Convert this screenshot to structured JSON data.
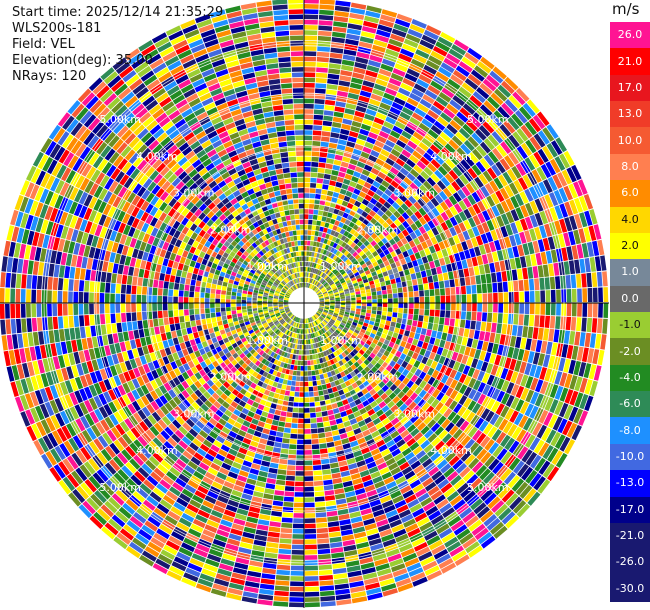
{
  "header": {
    "start_time": "Start time: 2025/12/14 21:35:29",
    "instrument": "WLS200s-181",
    "field": "Field: VEL",
    "elevation": "Elevation(deg): 35.00",
    "nrays": "NRays: 120"
  },
  "colorbar": {
    "unit": "m/s",
    "labels": [
      "26.0",
      "21.0",
      "17.0",
      "13.0",
      "10.0",
      "8.0",
      "6.0",
      "4.0",
      "2.0",
      "1.0",
      "0.0",
      "-1.0",
      "-2.0",
      "-4.0",
      "-6.0",
      "-8.0",
      "-10.0",
      "-13.0",
      "-17.0",
      "-21.0",
      "-26.0",
      "-30.0"
    ],
    "colors": [
      "#ff1493",
      "#ff0000",
      "#e8161e",
      "#f03c28",
      "#f55a32",
      "#ff7f50",
      "#ff8c00",
      "#ffd700",
      "#ffff00",
      "#778899",
      "#696969",
      "#9acd32",
      "#6b8e23",
      "#228b22",
      "#2e8b57",
      "#1e90ff",
      "#4169e1",
      "#0000ff",
      "#00008b",
      "#191970",
      "#191970",
      "#191970"
    ]
  },
  "chart_data": {
    "type": "heatmap",
    "field": "VEL",
    "unit": "m/s",
    "elevation_deg": 35.0,
    "n_rays": 120,
    "range_rings": [
      "1.00km",
      "2.00km",
      "3.00km",
      "4.00km",
      "5.00km"
    ],
    "colorscale": [
      {
        "value": 26.0,
        "color": "#ff1493"
      },
      {
        "value": 21.0,
        "color": "#ff0000"
      },
      {
        "value": 17.0,
        "color": "#e8161e"
      },
      {
        "value": 13.0,
        "color": "#f03c28"
      },
      {
        "value": 10.0,
        "color": "#f55a32"
      },
      {
        "value": 8.0,
        "color": "#ff7f50"
      },
      {
        "value": 6.0,
        "color": "#ff8c00"
      },
      {
        "value": 4.0,
        "color": "#ffd700"
      },
      {
        "value": 2.0,
        "color": "#ffff00"
      },
      {
        "value": 1.0,
        "color": "#778899"
      },
      {
        "value": 0.0,
        "color": "#696969"
      },
      {
        "value": -1.0,
        "color": "#9acd32"
      },
      {
        "value": -2.0,
        "color": "#6b8e23"
      },
      {
        "value": -4.0,
        "color": "#228b22"
      },
      {
        "value": -6.0,
        "color": "#2e8b57"
      },
      {
        "value": -8.0,
        "color": "#1e90ff"
      },
      {
        "value": -10.0,
        "color": "#4169e1"
      },
      {
        "value": -13.0,
        "color": "#0000ff"
      },
      {
        "value": -17.0,
        "color": "#00008b"
      },
      {
        "value": -21.0,
        "color": "#191970"
      },
      {
        "value": -26.0,
        "color": "#191970"
      },
      {
        "value": -30.0,
        "color": "#191970"
      }
    ]
  }
}
